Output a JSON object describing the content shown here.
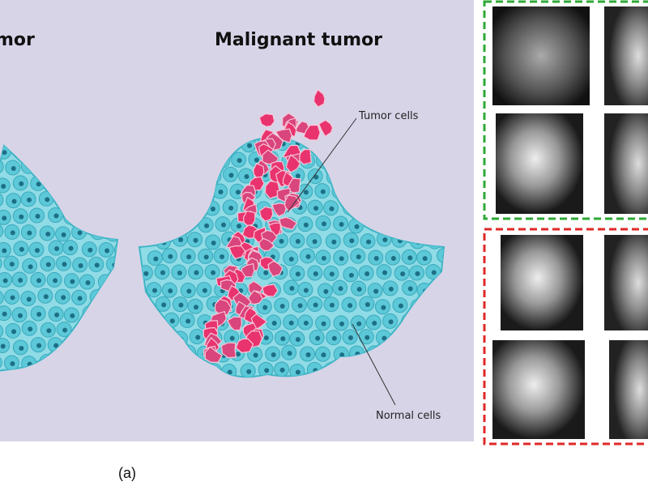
{
  "illustration": {
    "left_title": "mor",
    "title": "Malignant tumor",
    "tumor_label": "Tumor cells",
    "normal_label": "Normal cells"
  },
  "caption": "(a)"
}
